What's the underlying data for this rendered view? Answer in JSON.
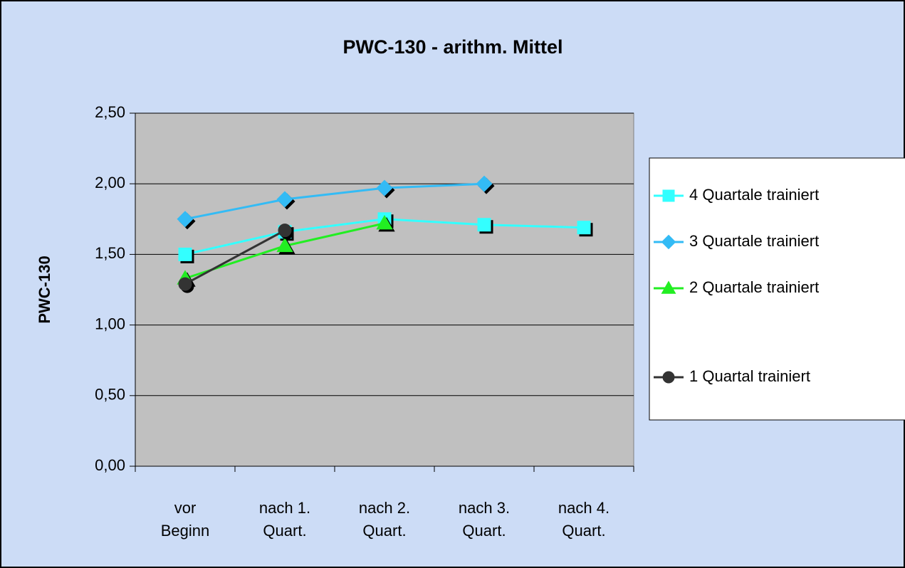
{
  "chart_data": {
    "type": "line",
    "title": "PWC-130 - arithm. Mittel",
    "y_label": "PWC-130",
    "categories": [
      "vor\nBeginn",
      "nach 1.\nQuart.",
      "nach 2.\nQuart.",
      "nach 3.\nQuart.",
      "nach 4.\nQuart."
    ],
    "series": [
      {
        "name": "4 Quartale trainiert",
        "color": "#33ffff",
        "marker": "square",
        "values": [
          1.5,
          1.66,
          1.75,
          1.71,
          1.69
        ]
      },
      {
        "name": "3 Quartale trainiert",
        "color": "#33bbf5",
        "marker": "diamond",
        "values": [
          1.75,
          1.89,
          1.97,
          2.0,
          null
        ]
      },
      {
        "name": "2 Quartale trainiert",
        "color": "#22ee22",
        "marker": "triangle",
        "values": [
          1.33,
          1.56,
          1.72,
          null,
          null
        ]
      },
      {
        "name": "1 Quartal trainiert",
        "color": "#333333",
        "marker": "circle",
        "values": [
          1.29,
          1.67,
          null,
          null,
          null
        ]
      }
    ],
    "ylim": [
      0,
      2.5
    ],
    "yticks": [
      {
        "value": 0,
        "label": "0,00"
      },
      {
        "value": 0.5,
        "label": "0,50"
      },
      {
        "value": 1,
        "label": "1,00"
      },
      {
        "value": 1.5,
        "label": "1,50"
      },
      {
        "value": 2,
        "label": "2,00"
      },
      {
        "value": 2.5,
        "label": "2,50"
      }
    ],
    "grid": true,
    "legend": "right"
  }
}
